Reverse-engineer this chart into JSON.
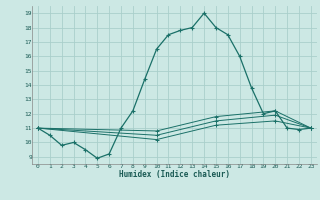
{
  "xlabel": "Humidex (Indice chaleur)",
  "background_color": "#cce8e4",
  "grid_color": "#aacfcb",
  "line_color": "#1a7068",
  "xlim": [
    -0.5,
    23.5
  ],
  "ylim": [
    8.5,
    19.5
  ],
  "xticks": [
    0,
    1,
    2,
    3,
    4,
    5,
    6,
    7,
    8,
    9,
    10,
    11,
    12,
    13,
    14,
    15,
    16,
    17,
    18,
    19,
    20,
    21,
    22,
    23
  ],
  "yticks": [
    9,
    10,
    11,
    12,
    13,
    14,
    15,
    16,
    17,
    18,
    19
  ],
  "curves": [
    {
      "x": [
        0,
        1,
        2,
        3,
        4,
        5,
        6,
        7,
        8,
        9,
        10,
        11,
        12,
        13,
        14,
        15,
        16,
        17,
        18,
        19,
        20,
        21,
        22,
        23
      ],
      "y": [
        11,
        10.5,
        9.8,
        10,
        9.5,
        8.9,
        9.2,
        11,
        12.2,
        14.4,
        16.5,
        17.5,
        17.8,
        18.0,
        19.0,
        18.0,
        17.5,
        16.0,
        13.8,
        12.0,
        12.2,
        11.0,
        10.9,
        11.0
      ]
    },
    {
      "x": [
        0,
        10,
        15,
        20,
        23
      ],
      "y": [
        11,
        10.8,
        11.8,
        12.2,
        11.0
      ]
    },
    {
      "x": [
        0,
        10,
        15,
        20,
        23
      ],
      "y": [
        11,
        10.5,
        11.5,
        11.9,
        11.0
      ]
    },
    {
      "x": [
        0,
        10,
        15,
        20,
        23
      ],
      "y": [
        11,
        10.2,
        11.2,
        11.5,
        11.0
      ]
    }
  ]
}
